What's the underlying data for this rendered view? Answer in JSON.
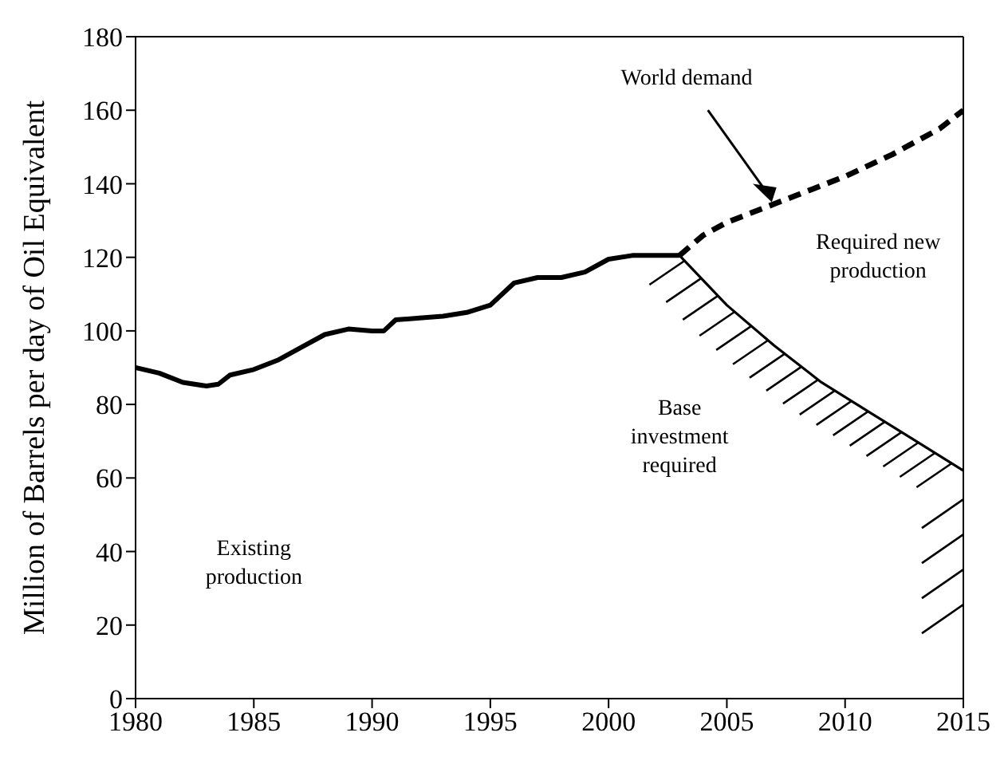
{
  "chart_data": {
    "type": "line",
    "ylabel": "Million of Barrels per day of Oil Equivalent",
    "xlim": [
      1980,
      2015
    ],
    "xticks": [
      1980,
      1985,
      1990,
      1995,
      2000,
      2005,
      2010,
      2015
    ],
    "ylim": [
      0,
      180
    ],
    "yticks": [
      0,
      20,
      40,
      60,
      80,
      100,
      120,
      140,
      160,
      180
    ],
    "grid": false,
    "marker": "none",
    "annotations": [
      "World demand",
      "Required new production",
      "Base investment required",
      "Existing production"
    ],
    "series": [
      {
        "color": "#000000",
        "line_style": "solid",
        "x": [
          1980,
          1981,
          1982,
          1983,
          1983.5,
          1984,
          1985,
          1986,
          1987,
          1988,
          1989,
          1990,
          1990.5,
          1991,
          1992,
          1993,
          1994,
          1995,
          1996,
          1997,
          1998,
          1999,
          2000,
          2001,
          2003
        ],
        "values": [
          90,
          88.5,
          86,
          85,
          85.5,
          88,
          89.5,
          92,
          95.5,
          99,
          100.5,
          100,
          100,
          103,
          103.5,
          104,
          105,
          107,
          113,
          114.5,
          114.5,
          116,
          119.5,
          120.5,
          120.5
        ]
      },
      {
        "color": "#000000",
        "line_style": "dashed",
        "x": [
          2003,
          2004,
          2005,
          2006,
          2007,
          2008,
          2010,
          2012,
          2014,
          2015
        ],
        "values": [
          120.5,
          126,
          129.5,
          132,
          134.5,
          137,
          142,
          148,
          155,
          160
        ]
      },
      {
        "color": "#000000",
        "line_style": "solid",
        "x": [
          2003,
          2005,
          2007,
          2009,
          2011,
          2013,
          2015
        ],
        "values": [
          120.5,
          107,
          96,
          86,
          78,
          70,
          62
        ]
      }
    ]
  }
}
